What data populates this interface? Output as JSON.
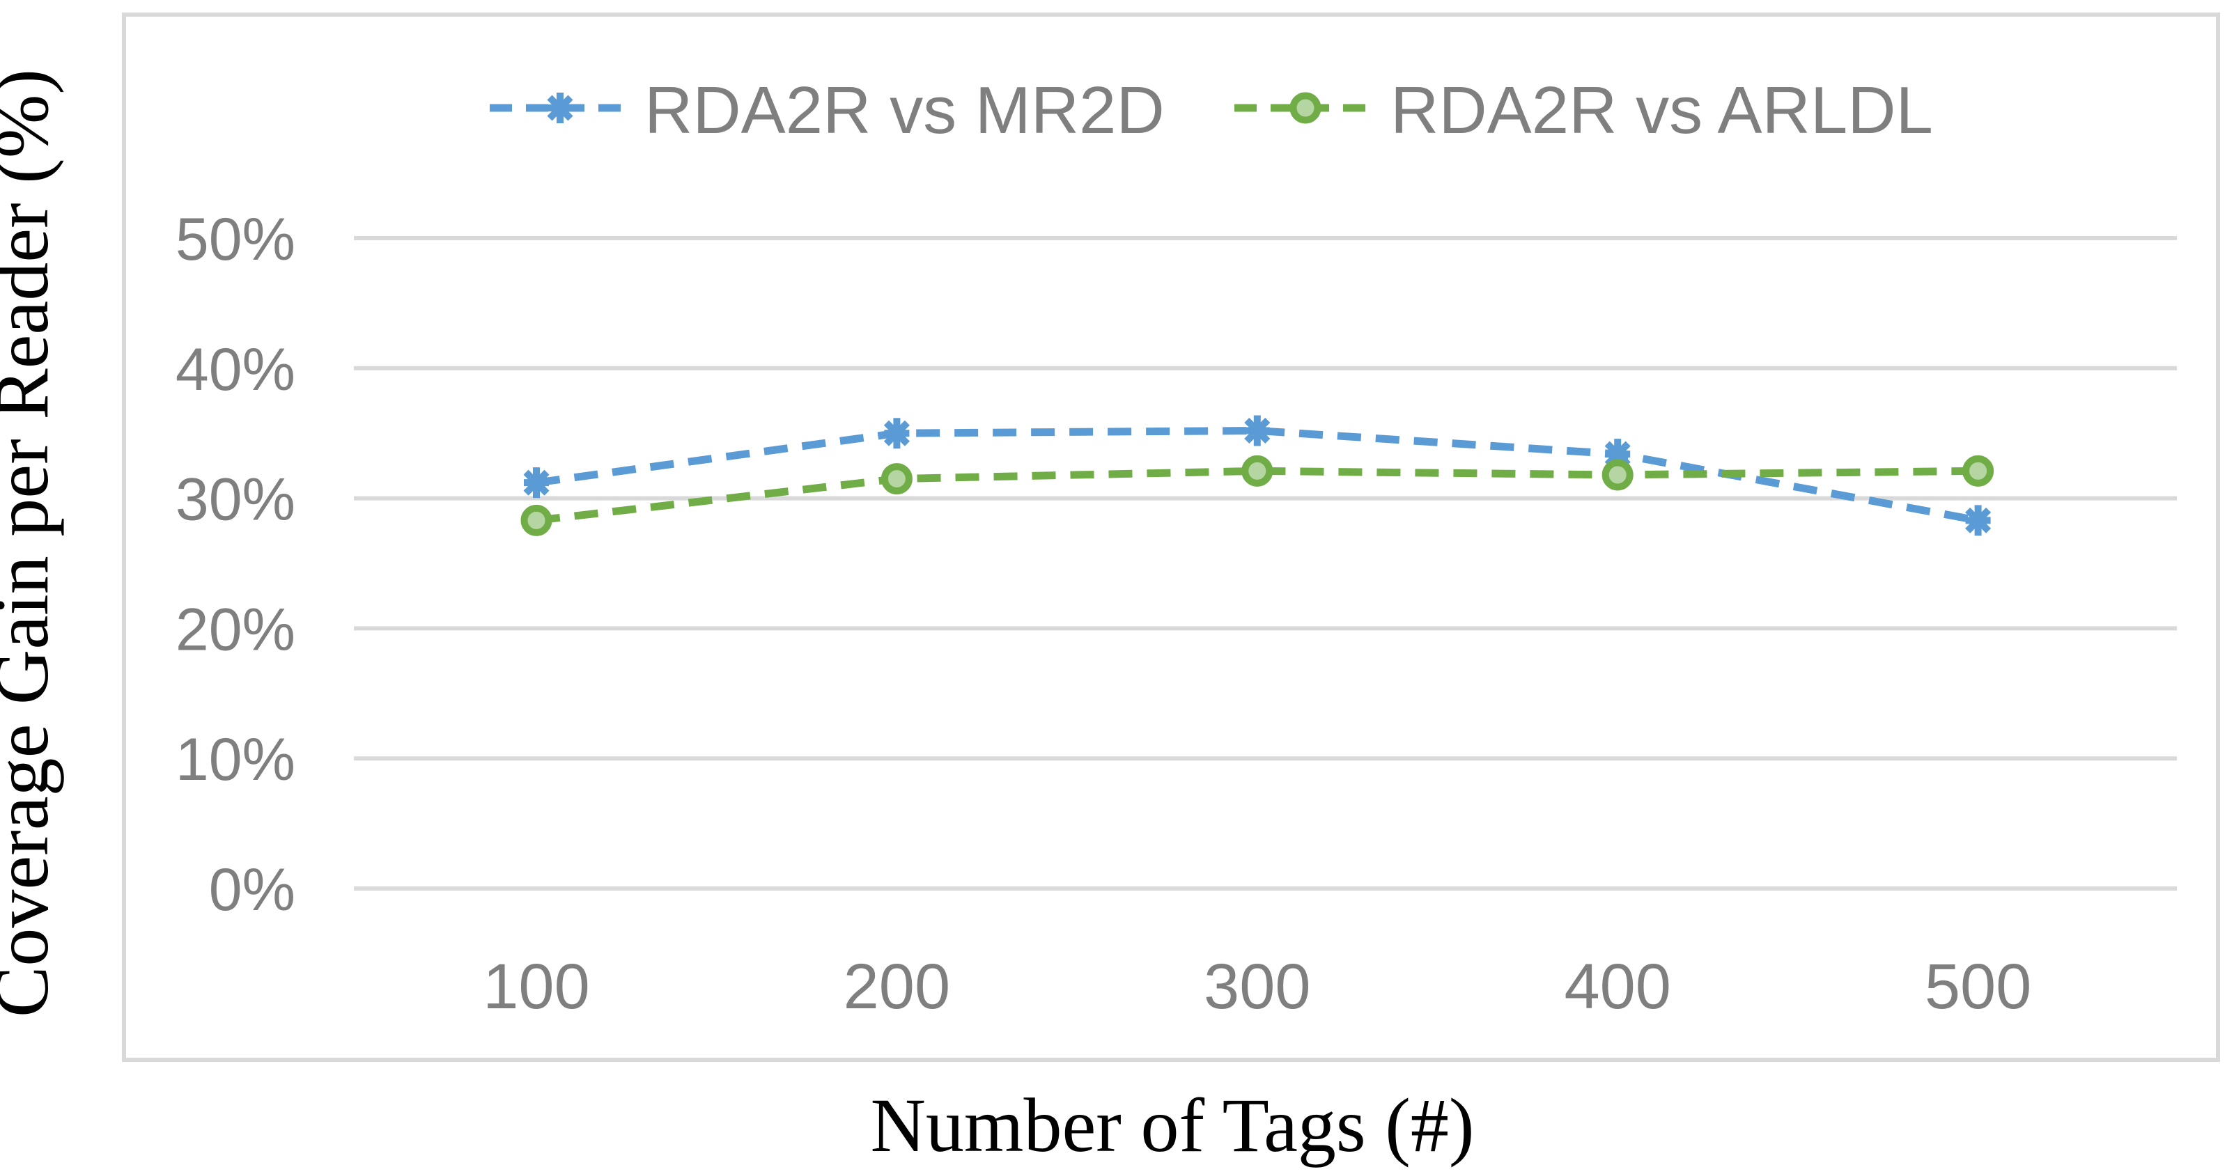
{
  "chart_data": {
    "type": "line",
    "title": "",
    "xlabel": "Number of Tags (#)",
    "ylabel": "Coverage Gain per Reader (%)",
    "x": [
      100,
      200,
      300,
      400,
      500
    ],
    "xtick_labels": [
      "100",
      "200",
      "300",
      "400",
      "500"
    ],
    "ylim": [
      0,
      50
    ],
    "ytick_step": 10,
    "ytick_labels": [
      "0%",
      "10%",
      "20%",
      "30%",
      "40%",
      "50%"
    ],
    "grid": "horizontal",
    "legend_position": "top-center",
    "series": [
      {
        "name": "RDA2R vs MR2D",
        "marker": "asterisk",
        "line_style": "dashed",
        "color": "#5B9BD5",
        "values": [
          31.2,
          35.0,
          35.2,
          33.4,
          28.3
        ]
      },
      {
        "name": "RDA2R vs ARLDL",
        "marker": "circle",
        "line_style": "dashed",
        "color": "#70AD47",
        "marker_fill": "#B5D6A3",
        "values": [
          28.3,
          31.5,
          32.1,
          31.8,
          32.1
        ]
      }
    ]
  },
  "colors": {
    "grid": "#D9D9D9",
    "plot_border": "#D9D9D9",
    "tick_text": "#7f7f7f",
    "legend_text": "#7f7f7f",
    "axis_title_text": "#000000",
    "background": "#ffffff"
  }
}
